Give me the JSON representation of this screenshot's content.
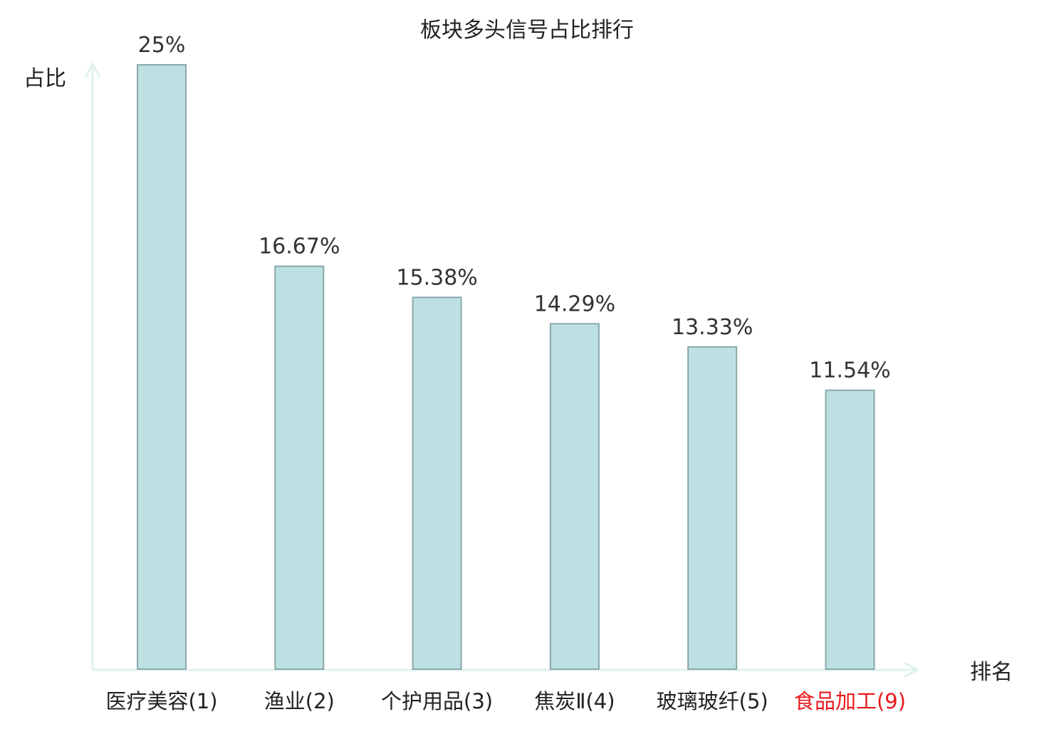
{
  "chart_data": {
    "type": "bar",
    "title": "板块多头信号占比排行",
    "xlabel": "排名",
    "ylabel": "占比",
    "categories": [
      "医疗美容(1)",
      "渔业(2)",
      "个护用品(3)",
      "焦炭Ⅱ(4)",
      "玻璃玻纤(5)",
      "食品加工(9)"
    ],
    "values": [
      25,
      16.67,
      15.38,
      14.29,
      13.33,
      11.54
    ],
    "value_labels": [
      "25%",
      "16.67%",
      "15.38%",
      "14.29%",
      "13.33%",
      "11.54%"
    ],
    "ylim": [
      0,
      25
    ],
    "grid": false,
    "legend": "none",
    "highlight_index": 5
  },
  "colors": {
    "bar_fill": "#bde0e2",
    "bar_stroke": "#8aa8aa",
    "axis": "#dff2ef",
    "label_default": "#222222",
    "label_highlight": "#e8191c",
    "value_text": "#333333"
  }
}
